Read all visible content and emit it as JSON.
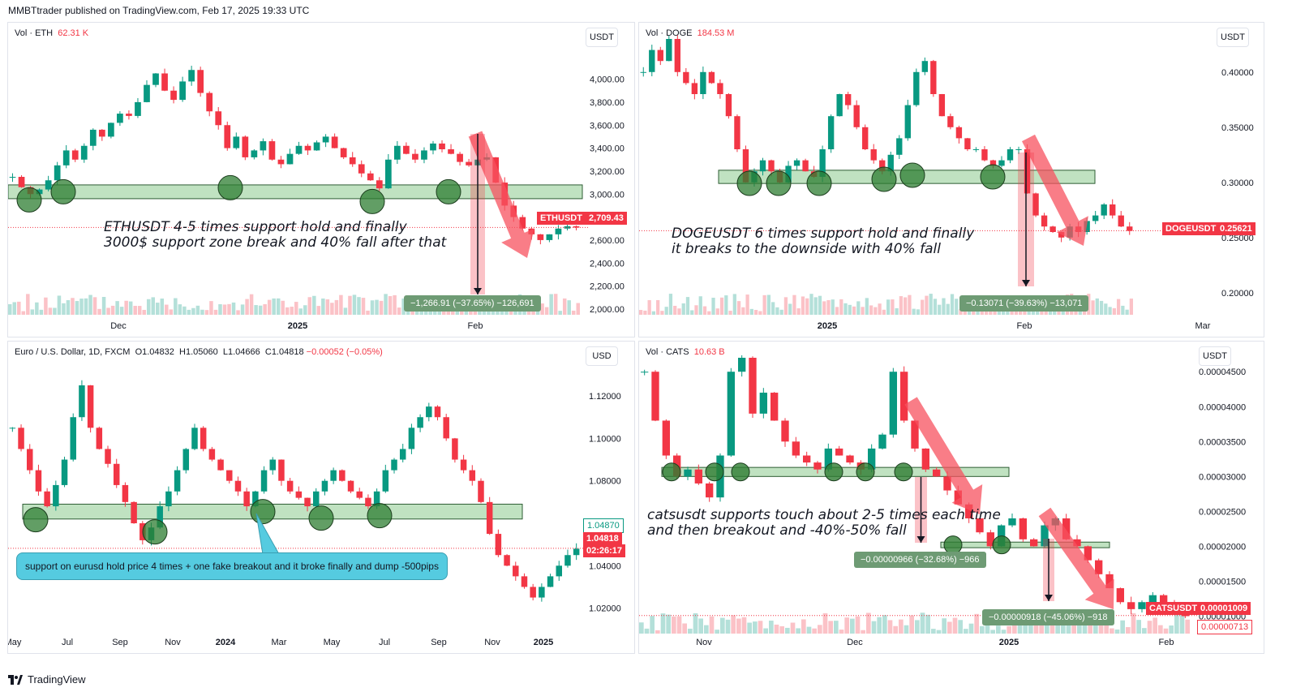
{
  "header": {
    "published_by": "MMBTtrader published on TradingView.com, Feb 17, 2025 19:33 UTC"
  },
  "footer": {
    "brand": "TradingView"
  },
  "colors": {
    "up": "#089981",
    "down": "#f23645",
    "zone": "#a5d6a7",
    "arrow": "#f7525f"
  },
  "chart_data": [
    {
      "id": "ETHUSDT",
      "type": "candlestick",
      "legend": {
        "vol_label": "Vol · ETH",
        "vol_value": "62.31 K"
      },
      "unit_button": "USDT",
      "y_ticks": [
        "4,000.00",
        "3,800.00",
        "3,600.00",
        "3,400.00",
        "3,200.00",
        "3,000.00",
        "2,800.00",
        "2,600.00",
        "2,400.00",
        "2,200.00",
        "2,000.00"
      ],
      "ylim": [
        1950,
        4350
      ],
      "x_ticks": [
        "Dec",
        "2025",
        "Feb"
      ],
      "price_label": {
        "symbol": "ETHUSDT",
        "value": "2,709.43"
      },
      "last_price": 2709.43,
      "support_zone": [
        2960,
        3080
      ],
      "touch_count": 6,
      "annotation": [
        "ETHUSDT 4-5 times support hold and finally",
        "3000$ support zone break and 40% fall after that"
      ],
      "measure": "−1,266.91 (−37.65%) −126,691",
      "series": [
        3150,
        3060,
        3000,
        3040,
        3120,
        3250,
        3380,
        3300,
        3420,
        3560,
        3500,
        3620,
        3700,
        3680,
        3800,
        3950,
        4050,
        3900,
        3820,
        3980,
        4080,
        3880,
        3720,
        3600,
        3400,
        3500,
        3320,
        3380,
        3460,
        3300,
        3260,
        3350,
        3420,
        3380,
        3450,
        3500,
        3400,
        3320,
        3260,
        3180,
        3120,
        3050,
        3300,
        3420,
        3350,
        3300,
        3380,
        3440,
        3390,
        3350,
        3280,
        3250,
        3300,
        3320,
        3100,
        2900,
        2800,
        2700,
        2650,
        2600,
        2650,
        2700,
        2720,
        2709
      ]
    },
    {
      "id": "DOGEUSDT",
      "type": "candlestick",
      "legend": {
        "vol_label": "Vol · DOGE",
        "vol_value": "184.53 M"
      },
      "unit_button": "USDT",
      "y_ticks": [
        "0.40000",
        "0.35000",
        "0.30000",
        "0.25000",
        "0.20000"
      ],
      "ylim": [
        0.18,
        0.43
      ],
      "x_ticks": [
        "2025",
        "Feb",
        "Mar"
      ],
      "price_label": {
        "symbol": "DOGEUSDT",
        "value": "0.25621"
      },
      "last_price": 0.25621,
      "support_zone": [
        0.299,
        0.311
      ],
      "touch_count": 6,
      "annotation": [
        "DOGEUSDT 6 times support hold and finally",
        "it breaks to the downside with 40% fall"
      ],
      "measure": "−0.13071 (−39.63%) −13,071",
      "series": [
        0.4,
        0.42,
        0.41,
        0.43,
        0.4,
        0.39,
        0.38,
        0.4,
        0.39,
        0.38,
        0.36,
        0.33,
        0.3,
        0.31,
        0.32,
        0.31,
        0.3,
        0.315,
        0.32,
        0.31,
        0.305,
        0.33,
        0.36,
        0.38,
        0.37,
        0.35,
        0.33,
        0.32,
        0.31,
        0.325,
        0.34,
        0.37,
        0.4,
        0.41,
        0.38,
        0.36,
        0.35,
        0.34,
        0.33,
        0.33,
        0.32,
        0.315,
        0.32,
        0.33,
        0.33,
        0.29,
        0.27,
        0.26,
        0.255,
        0.25,
        0.26,
        0.255,
        0.265,
        0.27,
        0.28,
        0.27,
        0.26,
        0.256
      ]
    },
    {
      "id": "EURUSD",
      "type": "candlestick",
      "legend": {
        "title": "Euro / U.S. Dollar, 1D, FXCM",
        "o": "O1.04832",
        "h": "H1.05060",
        "l": "L1.04666",
        "c": "C1.04818",
        "chg": "−0.00052 (−0.05%)"
      },
      "unit_button": "USD",
      "y_ticks": [
        "1.12000",
        "1.10000",
        "1.08000",
        "1.06000",
        "1.04000",
        "1.02000"
      ],
      "ylim": [
        1.008,
        1.138
      ],
      "x_ticks": [
        "May",
        "Jul",
        "Sep",
        "Nov",
        "2024",
        "Mar",
        "May",
        "Jul",
        "Sep",
        "Nov",
        "2025"
      ],
      "price_labels": [
        {
          "value": "1.04870"
        },
        {
          "value": "1.04818"
        },
        {
          "value": "02:26:17"
        }
      ],
      "last_price": 1.04818,
      "support_zone": [
        1.062,
        1.069
      ],
      "touch_count": 5,
      "callout": "support on eurusd hold price 4 times + one fake breakout and it broke finally  and dump -500pips",
      "series": [
        1.105,
        1.095,
        1.085,
        1.075,
        1.068,
        1.078,
        1.09,
        1.11,
        1.125,
        1.105,
        1.095,
        1.088,
        1.078,
        1.07,
        1.06,
        1.052,
        1.058,
        1.068,
        1.075,
        1.085,
        1.095,
        1.105,
        1.095,
        1.09,
        1.085,
        1.08,
        1.075,
        1.068,
        1.075,
        1.085,
        1.09,
        1.08,
        1.075,
        1.072,
        1.068,
        1.075,
        1.08,
        1.085,
        1.08,
        1.075,
        1.072,
        1.068,
        1.075,
        1.085,
        1.09,
        1.095,
        1.105,
        1.11,
        1.115,
        1.11,
        1.1,
        1.09,
        1.085,
        1.08,
        1.07,
        1.055,
        1.045,
        1.04,
        1.035,
        1.03,
        1.025,
        1.03,
        1.035,
        1.04,
        1.045,
        1.048
      ]
    },
    {
      "id": "CATSUSDT",
      "type": "candlestick",
      "legend": {
        "vol_label": "Vol · CATS",
        "vol_value": "10.63 B"
      },
      "unit_button": "USDT",
      "y_ticks": [
        "0.00004500",
        "0.00004000",
        "0.00003500",
        "0.00003000",
        "0.00002500",
        "0.00002000",
        "0.00001500",
        "0.00001000"
      ],
      "ylim": [
        7.5e-06,
        4.7e-05
      ],
      "x_ticks": [
        "Nov",
        "Dec",
        "2025",
        "Feb"
      ],
      "price_labels": [
        {
          "symbol": "CATSUSDT",
          "value": "0.00001009"
        },
        {
          "value": "0.00000713"
        }
      ],
      "last_price": 1.009e-05,
      "support_zones": [
        [
          3e-05,
          3.13e-05
        ],
        [
          1.98e-05,
          2.06e-05
        ]
      ],
      "touch_counts": [
        7,
        2
      ],
      "annotation": [
        "catsusdt supports touch about 2-5 times each time",
        "and then breakout and -40%-50% fall"
      ],
      "measures": [
        "−0.00000966 (−32.68%) −966",
        "−0.00000918 (−45.06%) −918"
      ],
      "series": [
        4.5e-05,
        3.8e-05,
        3.3e-05,
        3e-05,
        3.1e-05,
        2.9e-05,
        2.7e-05,
        3.3e-05,
        4.5e-05,
        4.7e-05,
        3.9e-05,
        4.2e-05,
        3.8e-05,
        3.5e-05,
        3.3e-05,
        3.2e-05,
        3.1e-05,
        3.4e-05,
        3.3e-05,
        3.2e-05,
        3.1e-05,
        3.4e-05,
        3.6e-05,
        4.5e-05,
        3.8e-05,
        3.4e-05,
        3.1e-05,
        3e-05,
        2.8e-05,
        2.6e-05,
        2.4e-05,
        2.2e-05,
        2e-05,
        2.3e-05,
        2.4e-05,
        2.1e-05,
        2e-05,
        2.3e-05,
        2.4e-05,
        2.1e-05,
        2e-05,
        1.8e-05,
        1.6e-05,
        1.4e-05,
        1.2e-05,
        1.1e-05,
        1.2e-05,
        1.3e-05,
        1.2e-05,
        1.1e-05,
        1e-05
      ]
    }
  ]
}
